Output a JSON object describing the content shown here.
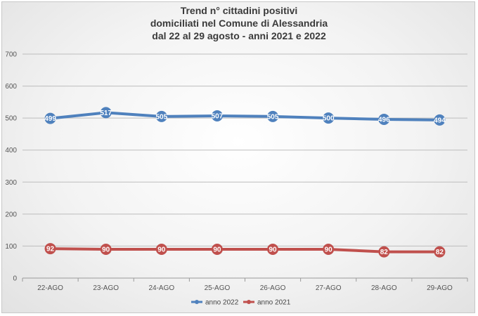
{
  "chart_data": {
    "type": "line",
    "title_lines": [
      "Trend n° cittadini positivi",
      "domiciliati nel Comune di Alessandria",
      "dal 22 al 29 agosto - anni 2021 e 2022"
    ],
    "categories": [
      "22-AGO",
      "23-AGO",
      "24-AGO",
      "25-AGO",
      "26-AGO",
      "27-AGO",
      "28-AGO",
      "29-AGO"
    ],
    "series": [
      {
        "name": "anno 2022",
        "color": "#4f81bd",
        "values": [
          499,
          517,
          505,
          507,
          505,
          500,
          496,
          494
        ],
        "labels": [
          "499",
          "517",
          "505",
          "507",
          "505",
          "500",
          "496",
          "494"
        ]
      },
      {
        "name": "anno 2021",
        "color": "#c0504d",
        "values": [
          92,
          90,
          90,
          90,
          90,
          90,
          82,
          82
        ],
        "labels": [
          "92",
          "90",
          "90",
          "90",
          "90",
          "90",
          "82",
          "82"
        ]
      }
    ],
    "ylim": [
      0,
      700
    ],
    "yticks": [
      0,
      100,
      200,
      300,
      400,
      500,
      600,
      700
    ],
    "grid": true,
    "legend_position": "bottom"
  }
}
